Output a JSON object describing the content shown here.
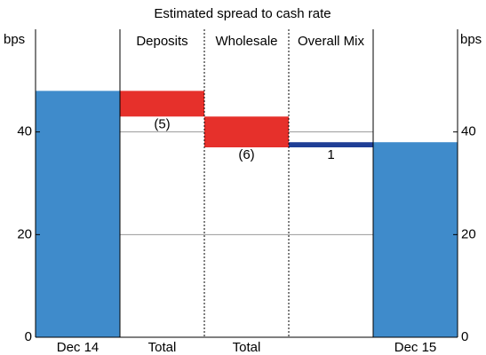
{
  "chart_data": {
    "type": "waterfall",
    "subtitle": "Estimated spread to cash rate",
    "ylabel": "bps",
    "y2label": "bps",
    "headers": [
      null,
      "Deposits",
      "Wholesale",
      "Overall Mix",
      null
    ],
    "categories": [
      "Dec 14",
      "Total",
      "Total",
      null,
      "Dec 15"
    ],
    "values": [
      48,
      -5,
      -6,
      1,
      38
    ],
    "value_labels": [
      null,
      "(5)",
      "(6)",
      "1",
      null
    ],
    "colors": [
      "#3f8bcb",
      "#e6302b",
      "#e6302b",
      "#1f3e96",
      "#3f8bcb"
    ],
    "ylim": [
      0,
      60
    ],
    "yticks": [
      0,
      20,
      40
    ],
    "y2lim": [
      0,
      60
    ],
    "y2ticks": [
      0,
      20,
      40
    ],
    "grid": true
  }
}
